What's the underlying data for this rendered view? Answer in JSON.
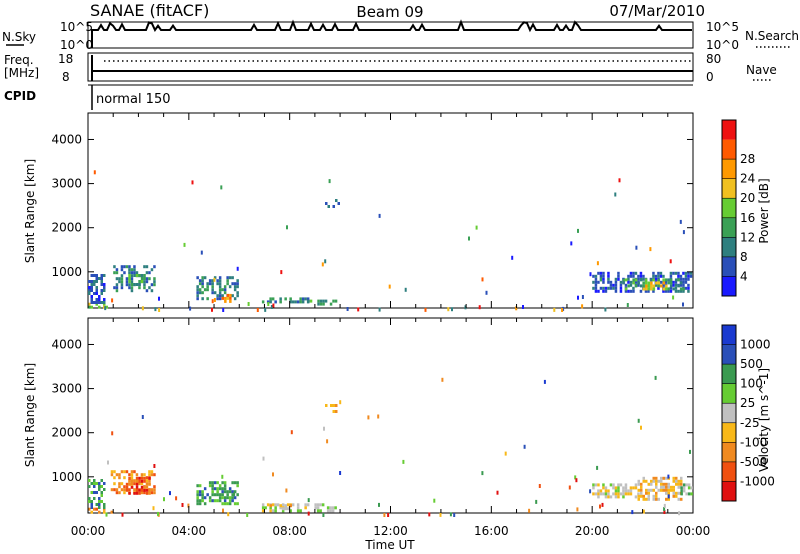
{
  "header": {
    "station": "SANAE (fitACF)",
    "beam": "Beam 09",
    "date": "07/Mar/2010"
  },
  "status_panels": {
    "nsky_label": "N.Sky",
    "nsky_top": "10^5",
    "nsky_bottom": "10^0",
    "nsearch_label": "N.Search",
    "nsearch_top": "10^5",
    "nsearch_bottom": "10^0",
    "freq_label": "Freq.",
    "freq_unit": "[MHz]",
    "freq_top": "18",
    "freq_bottom": "8",
    "nave_label": "Nave",
    "nave_top": "80",
    "nave_bottom": "0",
    "cpid_label": "CPID",
    "cpid_value": "normal 150"
  },
  "colors": {
    "power": [
      "#1a1aff",
      "#2a4fb8",
      "#2e7f7f",
      "#3aa055",
      "#66cc33",
      "#f0c020",
      "#ff9900",
      "#ff5a00",
      "#ee1111"
    ],
    "velocity": [
      "#e01010",
      "#f05010",
      "#f08a20",
      "#f8b818",
      "#c0c0c0",
      "#66cc33",
      "#3a9a50",
      "#2a4fb8",
      "#1a3ad0"
    ]
  },
  "chart_data": [
    {
      "type": "heatmap",
      "name": "power",
      "ylabel": "Slant Range [km]",
      "xlabel": "Time UT",
      "x_ticks": [
        "00:00",
        "04:00",
        "08:00",
        "12:00",
        "16:00",
        "20:00",
        "00:00"
      ],
      "x_range_hours": [
        0,
        24
      ],
      "y_ticks": [
        1000,
        2000,
        3000,
        4000
      ],
      "y_range_km": [
        180,
        4600
      ],
      "colorbar": {
        "label": "Power [dB]",
        "ticks": [
          "4",
          "8",
          "12",
          "16",
          "20",
          "24",
          "28"
        ],
        "range": [
          0,
          32
        ]
      },
      "echo_regions": [
        {
          "t0": 0.0,
          "t1": 0.9,
          "r0": 180,
          "r1": 300,
          "level": 4
        },
        {
          "t0": 0.0,
          "t1": 0.6,
          "r0": 300,
          "r1": 950,
          "level": 1
        },
        {
          "t0": 1.0,
          "t1": 2.6,
          "r0": 600,
          "r1": 1150,
          "level": 2
        },
        {
          "t0": 1.6,
          "t1": 2.3,
          "r0": 700,
          "r1": 950,
          "level": 3
        },
        {
          "t0": 4.3,
          "t1": 5.9,
          "r0": 400,
          "r1": 900,
          "level": 2
        },
        {
          "t0": 5.3,
          "t1": 5.6,
          "r0": 350,
          "r1": 500,
          "level": 6
        },
        {
          "t0": 6.9,
          "t1": 8.7,
          "r0": 300,
          "r1": 420,
          "level": 2
        },
        {
          "t0": 8.7,
          "t1": 9.8,
          "r0": 250,
          "r1": 370,
          "level": 3
        },
        {
          "t0": 9.4,
          "t1": 9.9,
          "r0": 2450,
          "r1": 2650,
          "level": 1
        },
        {
          "t0": 20.0,
          "t1": 23.9,
          "r0": 550,
          "r1": 1000,
          "level": 1
        },
        {
          "t0": 21.2,
          "t1": 23.6,
          "r0": 600,
          "r1": 850,
          "level": 3
        },
        {
          "t0": 22.0,
          "t1": 23.0,
          "r0": 620,
          "r1": 780,
          "level": 5
        }
      ]
    },
    {
      "type": "heatmap",
      "name": "velocity",
      "ylabel": "Slant Range [km]",
      "xlabel": "Time UT",
      "x_ticks": [
        "00:00",
        "04:00",
        "08:00",
        "12:00",
        "16:00",
        "20:00",
        "00:00"
      ],
      "x_range_hours": [
        0,
        24
      ],
      "y_ticks": [
        1000,
        2000,
        3000,
        4000
      ],
      "y_range_km": [
        180,
        4600
      ],
      "colorbar": {
        "label": "Velocity [m s^-1]",
        "ticks": [
          "1000",
          "500",
          "100",
          "25",
          "-25",
          "-100",
          "-500",
          "-1000"
        ],
        "range": [
          -1000,
          1000
        ]
      },
      "echo_regions": [
        {
          "t0": 0.0,
          "t1": 0.9,
          "r0": 180,
          "r1": 300,
          "level": 2
        },
        {
          "t0": 0.0,
          "t1": 0.6,
          "r0": 300,
          "r1": 950,
          "level": 6
        },
        {
          "t0": 0.9,
          "t1": 2.6,
          "r0": 650,
          "r1": 1150,
          "level": 2
        },
        {
          "t0": 1.5,
          "t1": 2.4,
          "r0": 600,
          "r1": 1000,
          "level": 1
        },
        {
          "t0": 4.3,
          "t1": 5.9,
          "r0": 400,
          "r1": 900,
          "level": 6
        },
        {
          "t0": 6.9,
          "t1": 9.9,
          "r0": 200,
          "r1": 400,
          "level": 4
        },
        {
          "t0": 7.2,
          "t1": 8.0,
          "r0": 250,
          "r1": 380,
          "level": 3
        },
        {
          "t0": 9.4,
          "t1": 9.9,
          "r0": 2450,
          "r1": 2650,
          "level": 2
        },
        {
          "t0": 20.0,
          "t1": 21.8,
          "r0": 550,
          "r1": 850,
          "level": 4
        },
        {
          "t0": 21.8,
          "t1": 23.5,
          "r0": 500,
          "r1": 1000,
          "level": 3
        },
        {
          "t0": 23.5,
          "t1": 23.9,
          "r0": 600,
          "r1": 850,
          "level": 5
        }
      ]
    }
  ]
}
